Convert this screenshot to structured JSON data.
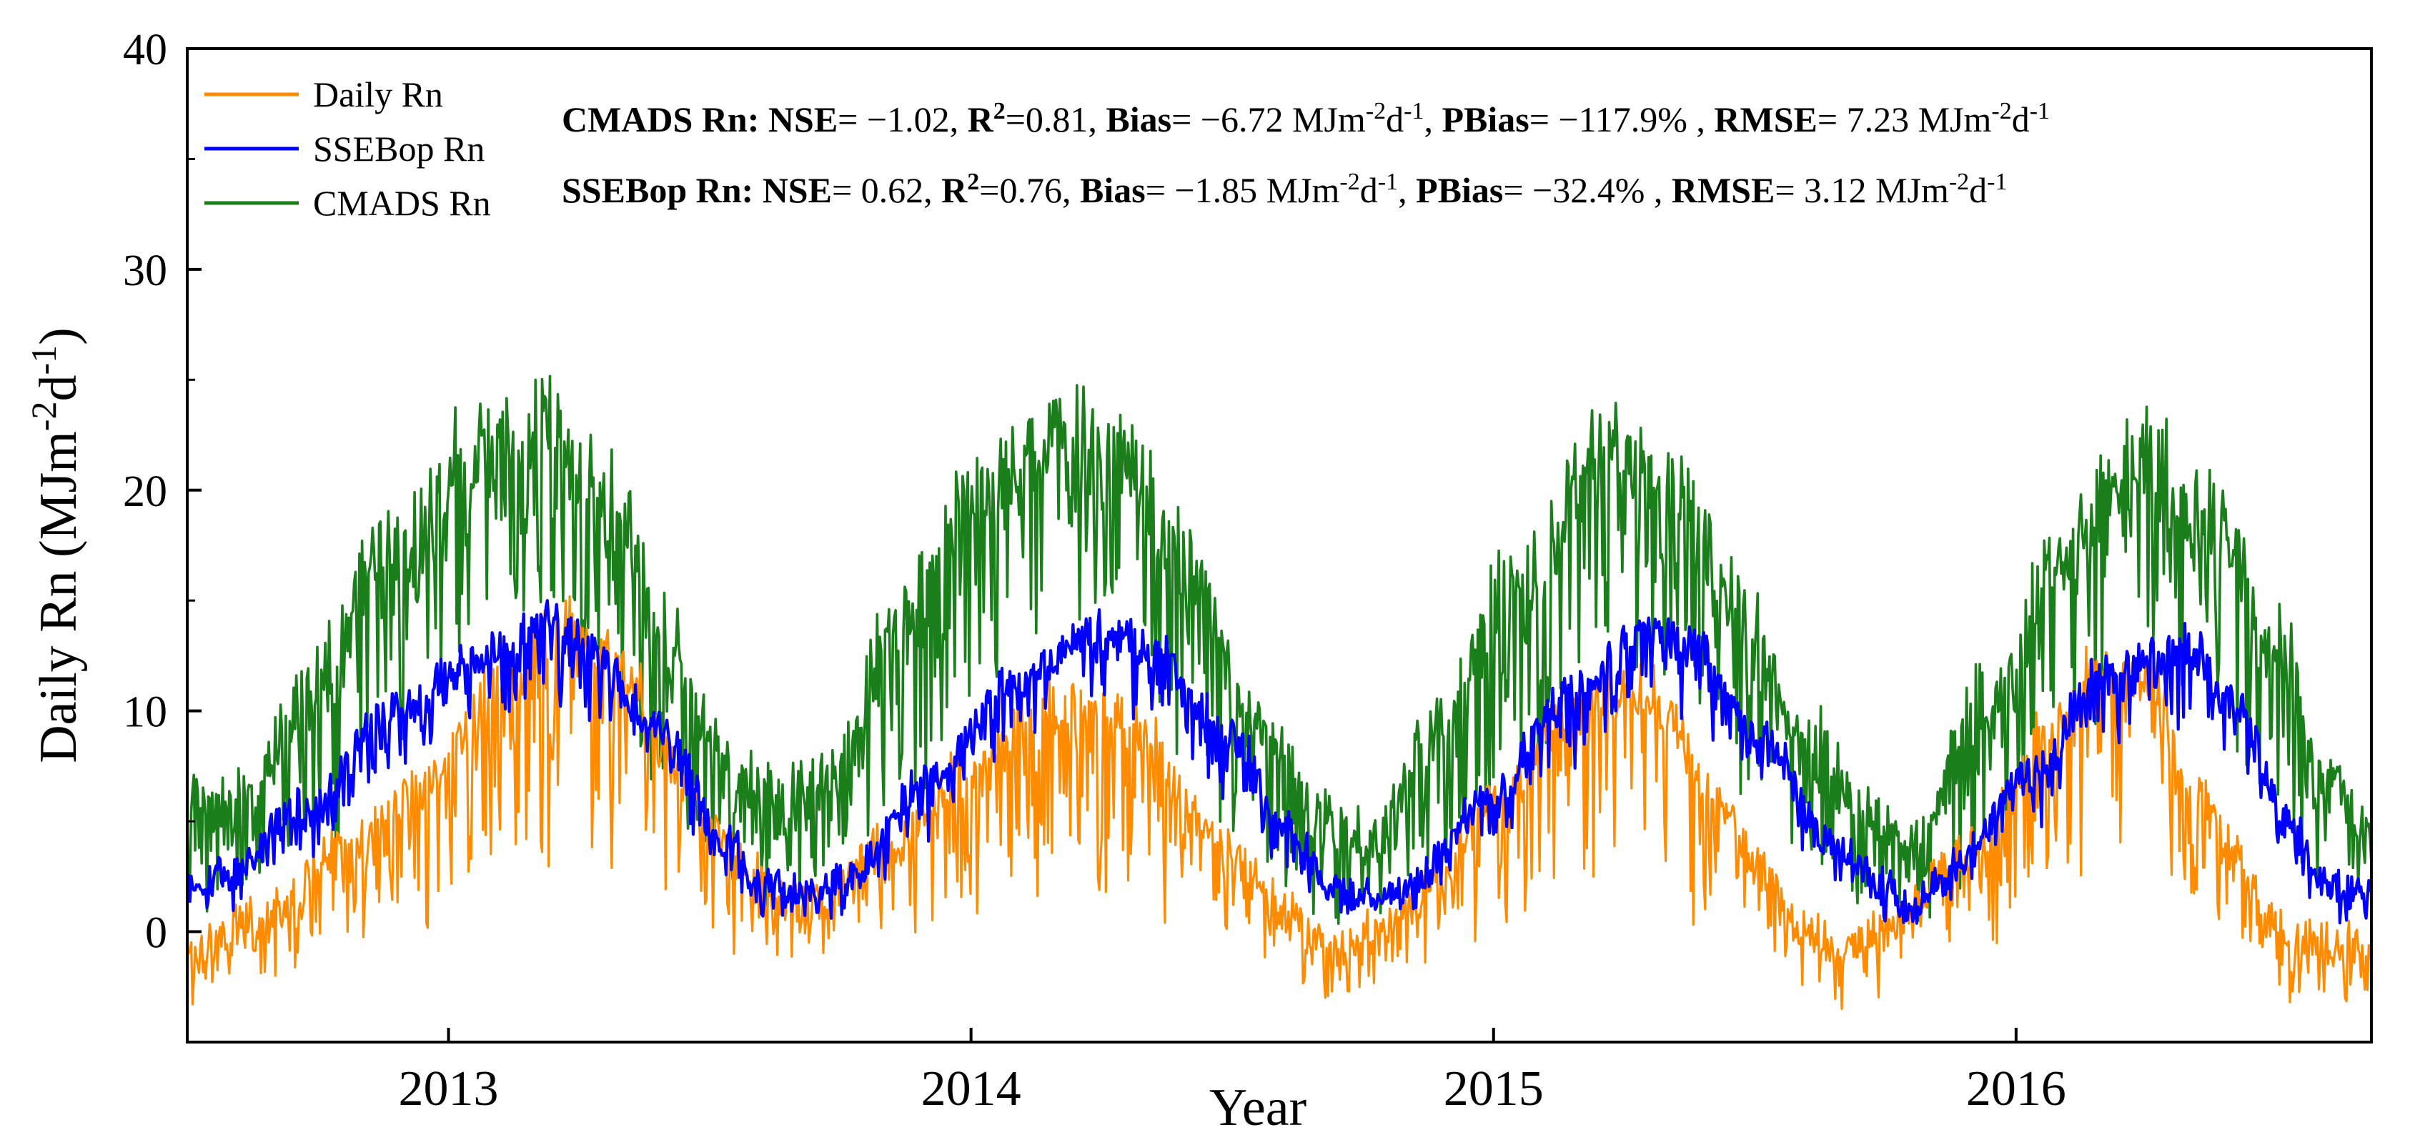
{
  "chart_data": {
    "type": "line",
    "title": "",
    "xlabel": "Year",
    "ylabel": "Daily Rn",
    "ylabel_unit": {
      "base": "(MJm",
      "exp1": "-2",
      "mid": "d",
      "exp2": "-1",
      "end": ")"
    },
    "ylim": [
      -5,
      40
    ],
    "xlim": [
      2012.5,
      2016.68
    ],
    "y_ticks": [
      0,
      10,
      20,
      30,
      40
    ],
    "x_ticks": [
      2013,
      2014,
      2015,
      2016
    ],
    "grid": false,
    "legend_position": "top-left",
    "series": [
      {
        "name": "Daily Rn",
        "color": "#ff8c00",
        "mean_anchors": [
          [
            0,
            -0.8
          ],
          [
            60,
            0.5
          ],
          [
            120,
            3.5
          ],
          [
            180,
            6
          ],
          [
            240,
            10
          ],
          [
            290,
            12.5
          ],
          [
            330,
            11
          ],
          [
            370,
            7
          ],
          [
            420,
            3
          ],
          [
            450,
            1.2
          ],
          [
            480,
            1.3
          ],
          [
            530,
            3.5
          ],
          [
            600,
            6.5
          ],
          [
            650,
            9
          ],
          [
            690,
            9.5
          ],
          [
            720,
            8.5
          ],
          [
            770,
            5
          ],
          [
            800,
            3
          ],
          [
            840,
            0.5
          ],
          [
            880,
            -1
          ],
          [
            910,
            0
          ],
          [
            940,
            1.5
          ],
          [
            1000,
            5.5
          ],
          [
            1050,
            9
          ],
          [
            1090,
            10
          ],
          [
            1120,
            9.5
          ],
          [
            1160,
            5.5
          ],
          [
            1200,
            2.5
          ],
          [
            1230,
            0
          ],
          [
            1255,
            -1.2
          ],
          [
            1290,
            0
          ],
          [
            1360,
            3.5
          ],
          [
            1420,
            8.5
          ],
          [
            1460,
            11
          ],
          [
            1490,
            10.5
          ],
          [
            1530,
            6
          ],
          [
            1560,
            3
          ],
          [
            1590,
            0
          ],
          [
            1620,
            -0.8
          ]
        ],
        "noise": {
          "down": [
            0,
            9
          ],
          "up": 2.2,
          "rand": 0.9
        }
      },
      {
        "name": "SSEBop Rn",
        "color": "#0000ff",
        "mean_anchors": [
          [
            0,
            2.3
          ],
          [
            30,
            2.5
          ],
          [
            90,
            5.5
          ],
          [
            160,
            10
          ],
          [
            230,
            12.5
          ],
          [
            270,
            13.8
          ],
          [
            310,
            12.5
          ],
          [
            360,
            9
          ],
          [
            410,
            4
          ],
          [
            440,
            2
          ],
          [
            470,
            1.7
          ],
          [
            500,
            2.2
          ],
          [
            560,
            6.5
          ],
          [
            630,
            11
          ],
          [
            690,
            13.5
          ],
          [
            740,
            12.5
          ],
          [
            790,
            9
          ],
          [
            840,
            4.5
          ],
          [
            870,
            2
          ],
          [
            900,
            1.6
          ],
          [
            930,
            2.2
          ],
          [
            990,
            6
          ],
          [
            1050,
            10.5
          ],
          [
            1110,
            13.5
          ],
          [
            1150,
            12.5
          ],
          [
            1200,
            8.5
          ],
          [
            1250,
            4
          ],
          [
            1290,
            2
          ],
          [
            1310,
            1.1
          ],
          [
            1340,
            2.8
          ],
          [
            1400,
            7
          ],
          [
            1460,
            11.5
          ],
          [
            1520,
            12.8
          ],
          [
            1560,
            10
          ],
          [
            1600,
            5
          ],
          [
            1630,
            2
          ],
          [
            1660,
            1.6
          ]
        ],
        "noise": {
          "down": [
            0,
            3
          ],
          "up": 0.6,
          "rand": 0.8
        }
      },
      {
        "name": "CMADS Rn",
        "color": "#1a7f1a",
        "mean_anchors": [
          [
            0,
            5
          ],
          [
            40,
            5.5
          ],
          [
            100,
            10
          ],
          [
            160,
            16
          ],
          [
            220,
            20
          ],
          [
            270,
            21.5
          ],
          [
            320,
            18
          ],
          [
            370,
            11
          ],
          [
            410,
            6.5
          ],
          [
            450,
            5
          ],
          [
            490,
            6
          ],
          [
            540,
            12
          ],
          [
            600,
            18
          ],
          [
            660,
            21
          ],
          [
            710,
            20
          ],
          [
            760,
            15
          ],
          [
            810,
            8.5
          ],
          [
            860,
            4.5
          ],
          [
            900,
            3.5
          ],
          [
            950,
            8
          ],
          [
            1010,
            14
          ],
          [
            1080,
            20
          ],
          [
            1130,
            18.5
          ],
          [
            1180,
            13
          ],
          [
            1230,
            7.5
          ],
          [
            1280,
            4.5
          ],
          [
            1310,
            3.5
          ],
          [
            1370,
            9
          ],
          [
            1430,
            15.5
          ],
          [
            1490,
            20
          ],
          [
            1540,
            17
          ],
          [
            1590,
            11
          ],
          [
            1630,
            6
          ],
          [
            1660,
            4
          ]
        ],
        "noise": {
          "down": [
            0,
            7
          ],
          "up": 3.5,
          "rand": 1
        }
      }
    ]
  },
  "annotations": {
    "cmads": {
      "label": "CMADS Rn:",
      "nse_label": "NSE",
      "nse_value": "= −1.02,",
      "r2_label": "R",
      "r2_exp": "2",
      "r2_value": "=0.81,",
      "bias_label": "Bias",
      "bias_value": "= −6.72 MJm",
      "bias_exp1": "-2",
      "bias_mid": "d",
      "bias_exp2": "-1",
      "bias_end": ",",
      "pbias_label": "PBias",
      "pbias_value": "= −117.9% ,",
      "rmse_label": "RMSE",
      "rmse_value": "= 7.23 MJm",
      "rmse_exp1": "-2",
      "rmse_mid": "d",
      "rmse_exp2": "-1"
    },
    "ssebop": {
      "label": "SSEBop Rn:",
      "nse_label": "NSE",
      "nse_value": "= 0.62,",
      "r2_label": "R",
      "r2_exp": "2",
      "r2_value": "=0.76,",
      "bias_label": "Bias",
      "bias_value": "= −1.85 MJm",
      "bias_exp1": "-2",
      "bias_mid": "d",
      "bias_exp2": "-1",
      "bias_end": ",",
      "pbias_label": "PBias",
      "pbias_value": "= −32.4% ,",
      "rmse_label": "RMSE",
      "rmse_value": "= 3.12 MJm",
      "rmse_exp1": "-2",
      "rmse_mid": "d",
      "rmse_exp2": "-1"
    }
  }
}
